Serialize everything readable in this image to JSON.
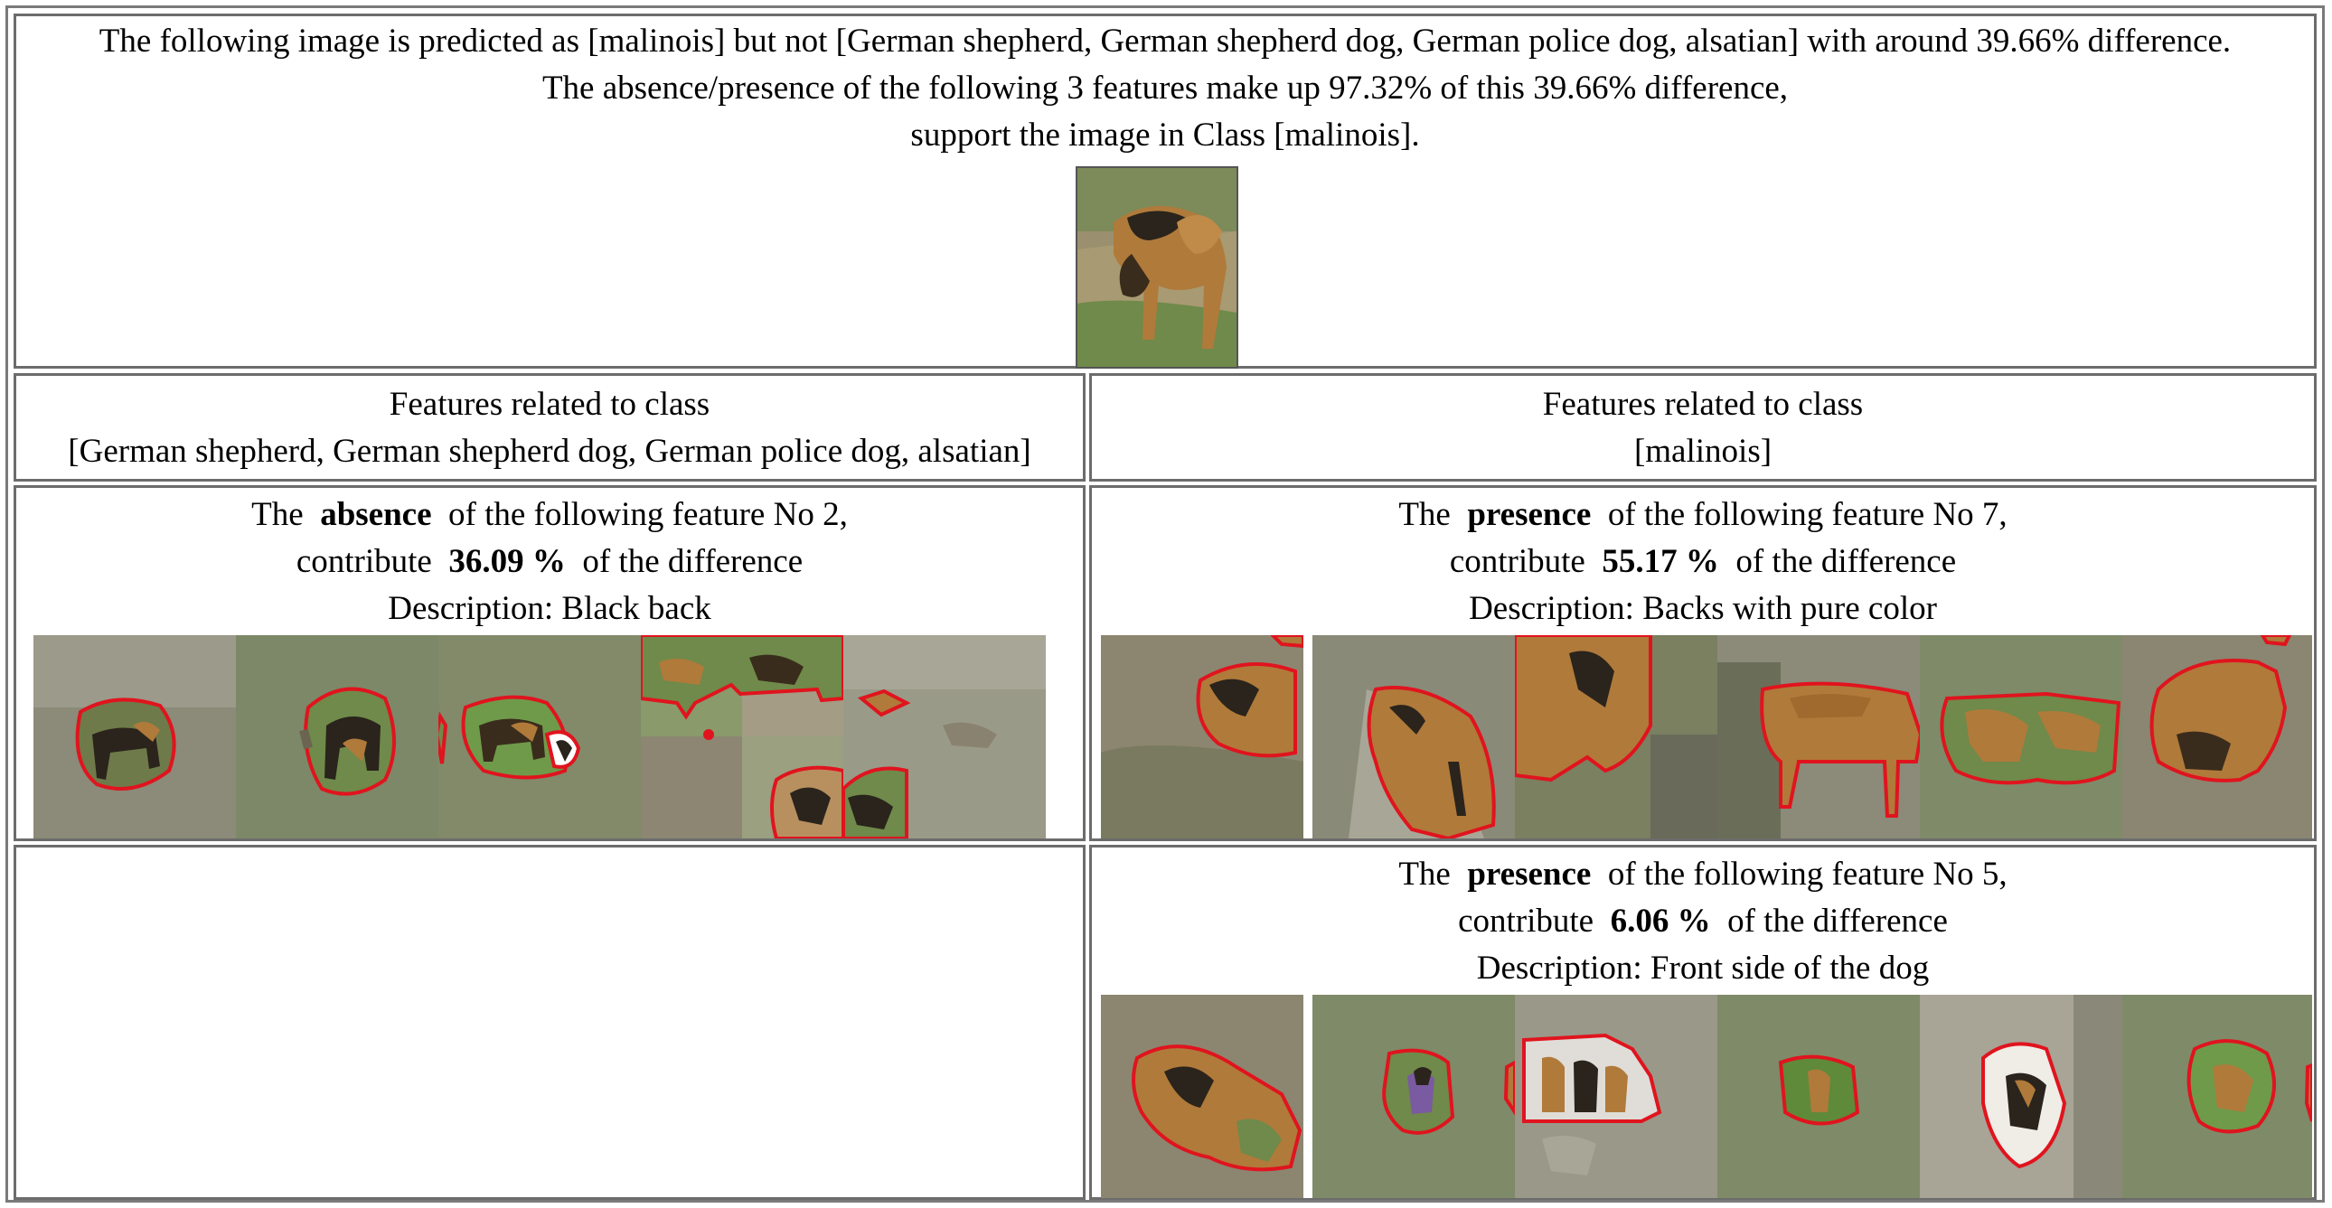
{
  "header": {
    "line1": "The following image is predicted as [malinois] but not [German shepherd, German shepherd dog, German police dog, alsatian] with around 39.66% difference.",
    "line2": "The absence/presence of the following 3 features make up 97.32% of this 39.66% difference,",
    "line3": "support the image in Class [malinois].",
    "thumbnail_icon": "dog-photo"
  },
  "columns": {
    "left": {
      "heading_line1": "Features related to class",
      "heading_line2": "[German shepherd, German shepherd dog, German police dog, alsatian]"
    },
    "right": {
      "heading_line1": "Features related to class",
      "heading_line2": "[malinois]"
    }
  },
  "features": {
    "left_1": {
      "prefix": "The",
      "kind": "absence",
      "suffix": "of the following feature No 2,",
      "contribute": "contribute",
      "percent": "36.09 %",
      "tail": "of the difference",
      "description": "Description: Black back"
    },
    "right_1": {
      "prefix": "The",
      "kind": "presence",
      "suffix": "of the following feature No 7,",
      "contribute": "contribute",
      "percent": "55.17 %",
      "tail": "of the difference",
      "description": "Description: Backs with pure color"
    },
    "right_2": {
      "prefix": "The",
      "kind": "presence",
      "suffix": "of the following feature No 5,",
      "contribute": "contribute",
      "percent": "6.06 %",
      "tail": "of the difference",
      "description": "Description: Front side of the dog"
    }
  },
  "colors": {
    "outline": "#e0141e",
    "faded_background": "#8c8a78",
    "grass": "#6f8a4a",
    "dog_tan": "#b07a3a",
    "dog_black": "#2a241c"
  }
}
